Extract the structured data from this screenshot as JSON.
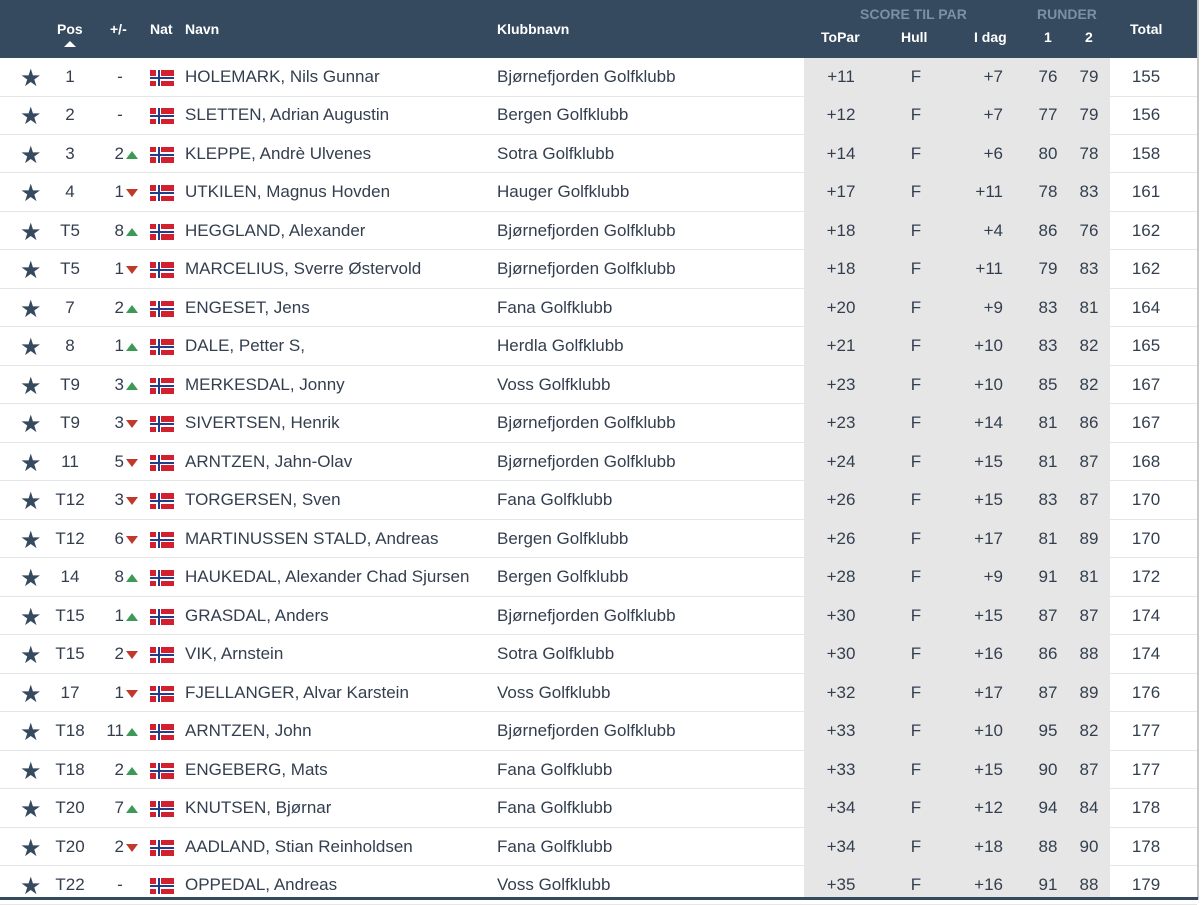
{
  "header": {
    "pos": "Pos",
    "diff": "+/-",
    "nat": "Nat",
    "name": "Navn",
    "club": "Klubbnavn",
    "score_group": "SCORE TIL PAR",
    "topar": "ToPar",
    "hull": "Hull",
    "idag": "I dag",
    "rounds_group": "RUNDER",
    "r1": "1",
    "r2": "2",
    "total": "Total"
  },
  "colors": {
    "header_bg": "#364a5f",
    "up": "#3c9a56",
    "down": "#c0392b",
    "score_bg": "#e6e6e6"
  },
  "rows": [
    {
      "pos": "1",
      "diff": "-",
      "dir": "",
      "name": "HOLEMARK, Nils Gunnar",
      "club": "Bjørnefjorden Golfklubb",
      "topar": "+11",
      "hull": "F",
      "idag": "+7",
      "r1": "76",
      "r2": "79",
      "total": "155"
    },
    {
      "pos": "2",
      "diff": "-",
      "dir": "",
      "name": "SLETTEN, Adrian Augustin",
      "club": "Bergen Golfklubb",
      "topar": "+12",
      "hull": "F",
      "idag": "+7",
      "r1": "77",
      "r2": "79",
      "total": "156"
    },
    {
      "pos": "3",
      "diff": "2",
      "dir": "up",
      "name": "KLEPPE, Andrè Ulvenes",
      "club": "Sotra Golfklubb",
      "topar": "+14",
      "hull": "F",
      "idag": "+6",
      "r1": "80",
      "r2": "78",
      "total": "158"
    },
    {
      "pos": "4",
      "diff": "1",
      "dir": "down",
      "name": "UTKILEN, Magnus Hovden",
      "club": "Hauger Golfklubb",
      "topar": "+17",
      "hull": "F",
      "idag": "+11",
      "r1": "78",
      "r2": "83",
      "total": "161"
    },
    {
      "pos": "T5",
      "diff": "8",
      "dir": "up",
      "name": "HEGGLAND, Alexander",
      "club": "Bjørnefjorden Golfklubb",
      "topar": "+18",
      "hull": "F",
      "idag": "+4",
      "r1": "86",
      "r2": "76",
      "total": "162"
    },
    {
      "pos": "T5",
      "diff": "1",
      "dir": "down",
      "name": "MARCELIUS, Sverre Østervold",
      "club": "Bjørnefjorden Golfklubb",
      "topar": "+18",
      "hull": "F",
      "idag": "+11",
      "r1": "79",
      "r2": "83",
      "total": "162"
    },
    {
      "pos": "7",
      "diff": "2",
      "dir": "up",
      "name": "ENGESET, Jens",
      "club": "Fana Golfklubb",
      "topar": "+20",
      "hull": "F",
      "idag": "+9",
      "r1": "83",
      "r2": "81",
      "total": "164"
    },
    {
      "pos": "8",
      "diff": "1",
      "dir": "up",
      "name": "DALE, Petter S,",
      "club": "Herdla Golfklubb",
      "topar": "+21",
      "hull": "F",
      "idag": "+10",
      "r1": "83",
      "r2": "82",
      "total": "165"
    },
    {
      "pos": "T9",
      "diff": "3",
      "dir": "up",
      "name": "MERKESDAL, Jonny",
      "club": "Voss Golfklubb",
      "topar": "+23",
      "hull": "F",
      "idag": "+10",
      "r1": "85",
      "r2": "82",
      "total": "167"
    },
    {
      "pos": "T9",
      "diff": "3",
      "dir": "down",
      "name": "SIVERTSEN, Henrik",
      "club": "Bjørnefjorden Golfklubb",
      "topar": "+23",
      "hull": "F",
      "idag": "+14",
      "r1": "81",
      "r2": "86",
      "total": "167"
    },
    {
      "pos": "11",
      "diff": "5",
      "dir": "down",
      "name": "ARNTZEN, Jahn-Olav",
      "club": "Bjørnefjorden Golfklubb",
      "topar": "+24",
      "hull": "F",
      "idag": "+15",
      "r1": "81",
      "r2": "87",
      "total": "168"
    },
    {
      "pos": "T12",
      "diff": "3",
      "dir": "down",
      "name": "TORGERSEN, Sven",
      "club": "Fana Golfklubb",
      "topar": "+26",
      "hull": "F",
      "idag": "+15",
      "r1": "83",
      "r2": "87",
      "total": "170"
    },
    {
      "pos": "T12",
      "diff": "6",
      "dir": "down",
      "name": "MARTINUSSEN STALD, Andreas",
      "club": "Bergen Golfklubb",
      "topar": "+26",
      "hull": "F",
      "idag": "+17",
      "r1": "81",
      "r2": "89",
      "total": "170"
    },
    {
      "pos": "14",
      "diff": "8",
      "dir": "up",
      "name": "HAUKEDAL, Alexander Chad Sjursen",
      "club": "Bergen Golfklubb",
      "topar": "+28",
      "hull": "F",
      "idag": "+9",
      "r1": "91",
      "r2": "81",
      "total": "172"
    },
    {
      "pos": "T15",
      "diff": "1",
      "dir": "up",
      "name": "GRASDAL, Anders",
      "club": "Bjørnefjorden Golfklubb",
      "topar": "+30",
      "hull": "F",
      "idag": "+15",
      "r1": "87",
      "r2": "87",
      "total": "174"
    },
    {
      "pos": "T15",
      "diff": "2",
      "dir": "down",
      "name": "VIK, Arnstein",
      "club": "Sotra Golfklubb",
      "topar": "+30",
      "hull": "F",
      "idag": "+16",
      "r1": "86",
      "r2": "88",
      "total": "174"
    },
    {
      "pos": "17",
      "diff": "1",
      "dir": "down",
      "name": "FJELLANGER, Alvar Karstein",
      "club": "Voss Golfklubb",
      "topar": "+32",
      "hull": "F",
      "idag": "+17",
      "r1": "87",
      "r2": "89",
      "total": "176"
    },
    {
      "pos": "T18",
      "diff": "11",
      "dir": "up",
      "name": "ARNTZEN, John",
      "club": "Bjørnefjorden Golfklubb",
      "topar": "+33",
      "hull": "F",
      "idag": "+10",
      "r1": "95",
      "r2": "82",
      "total": "177"
    },
    {
      "pos": "T18",
      "diff": "2",
      "dir": "up",
      "name": "ENGEBERG, Mats",
      "club": "Fana Golfklubb",
      "topar": "+33",
      "hull": "F",
      "idag": "+15",
      "r1": "90",
      "r2": "87",
      "total": "177"
    },
    {
      "pos": "T20",
      "diff": "7",
      "dir": "up",
      "name": "KNUTSEN, Bjørnar",
      "club": "Fana Golfklubb",
      "topar": "+34",
      "hull": "F",
      "idag": "+12",
      "r1": "94",
      "r2": "84",
      "total": "178"
    },
    {
      "pos": "T20",
      "diff": "2",
      "dir": "down",
      "name": "AADLAND, Stian Reinholdsen",
      "club": "Fana Golfklubb",
      "topar": "+34",
      "hull": "F",
      "idag": "+18",
      "r1": "88",
      "r2": "90",
      "total": "178"
    },
    {
      "pos": "T22",
      "diff": "-",
      "dir": "",
      "name": "OPPEDAL, Andreas",
      "club": "Voss Golfklubb",
      "topar": "+35",
      "hull": "F",
      "idag": "+16",
      "r1": "91",
      "r2": "88",
      "total": "179"
    }
  ]
}
